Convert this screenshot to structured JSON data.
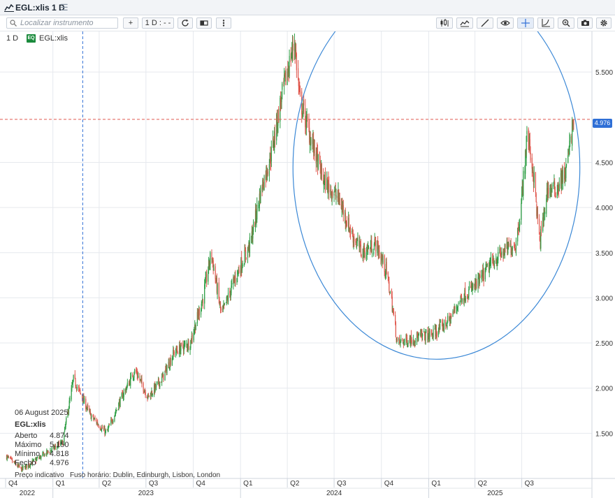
{
  "window": {
    "title": "EGL:xlis 1 D"
  },
  "toolbar": {
    "search_placeholder": "Localizar instrumento",
    "add_label": "+",
    "interval_label": "1 D : - -"
  },
  "legend": {
    "interval": "1 D",
    "badge": "EQ",
    "instrument": "EGL:xlis"
  },
  "last_price_label": "4.976",
  "info_panel": {
    "date": "06 August 2025",
    "instrument": "EGL:xlis",
    "rows": [
      {
        "label": "Aberto",
        "value": "4.874"
      },
      {
        "label": "Máximo",
        "value": "5.150"
      },
      {
        "label": "Mínimo",
        "value": "4.818"
      },
      {
        "label": "Fecho",
        "value": "4.976"
      }
    ]
  },
  "footer": {
    "note": "Preço indicativo",
    "timezone": "Fuso horário: Dublin, Edinburgh, Lisbon, London"
  },
  "colors": {
    "up": "#2e9e45",
    "down": "#e0594f",
    "accent": "#2f6fd6",
    "grid": "#e6e9ee",
    "circle": "#3b88d6"
  },
  "chart_data": {
    "type": "candlestick",
    "title": "",
    "ylim": [
      1.0,
      5.95
    ],
    "y_ticks": [
      "1.500",
      "2.000",
      "2.500",
      "3.000",
      "3.500",
      "4.000",
      "4.500",
      "5.500"
    ],
    "x_quarters": [
      "Q4",
      "Q1",
      "Q2",
      "Q3",
      "Q4",
      "Q1",
      "Q2",
      "Q3",
      "Q4",
      "Q1",
      "Q2",
      "Q3"
    ],
    "x_years": [
      "2022",
      "2023",
      "2024",
      "2025"
    ],
    "last_price": 4.976,
    "series": [
      {
        "name": "EGL:xlis",
        "approx_close_path": [
          [
            "2022-10-01",
            1.25
          ],
          [
            "2022-11-01",
            1.1
          ],
          [
            "2023-01-20",
            1.4
          ],
          [
            "2023-02-10",
            2.1
          ],
          [
            "2023-03-15",
            1.7
          ],
          [
            "2023-04-15",
            1.5
          ],
          [
            "2023-05-15",
            1.9
          ],
          [
            "2023-06-10",
            2.2
          ],
          [
            "2023-07-05",
            1.9
          ],
          [
            "2023-08-01",
            2.1
          ],
          [
            "2023-08-25",
            2.4
          ],
          [
            "2023-09-25",
            2.5
          ],
          [
            "2023-10-20",
            3.0
          ],
          [
            "2023-11-05",
            3.5
          ],
          [
            "2023-11-25",
            2.8
          ],
          [
            "2023-12-20",
            3.2
          ],
          [
            "2024-01-20",
            3.6
          ],
          [
            "2024-02-10",
            4.2
          ],
          [
            "2024-03-01",
            4.6
          ],
          [
            "2024-03-20",
            5.2
          ],
          [
            "2024-04-05",
            5.6
          ],
          [
            "2024-04-15",
            5.85
          ],
          [
            "2024-04-25",
            5.2
          ],
          [
            "2024-05-20",
            4.7
          ],
          [
            "2024-06-10",
            4.3
          ],
          [
            "2024-07-10",
            4.1
          ],
          [
            "2024-08-05",
            3.7
          ],
          [
            "2024-08-25",
            3.5
          ],
          [
            "2024-09-20",
            3.6
          ],
          [
            "2024-10-10",
            3.3
          ],
          [
            "2024-10-20",
            3.0
          ],
          [
            "2024-11-01",
            2.5
          ],
          [
            "2024-12-01",
            2.55
          ],
          [
            "2025-01-10",
            2.6
          ],
          [
            "2025-02-10",
            2.75
          ],
          [
            "2025-03-05",
            3.0
          ],
          [
            "2025-04-05",
            3.15
          ],
          [
            "2025-05-05",
            3.4
          ],
          [
            "2025-06-05",
            3.55
          ],
          [
            "2025-06-20",
            3.6
          ],
          [
            "2025-07-01",
            4.1
          ],
          [
            "2025-07-12",
            4.85
          ],
          [
            "2025-07-25",
            4.3
          ],
          [
            "2025-08-05",
            3.6
          ],
          [
            "2025-08-20",
            4.2
          ],
          [
            "2025-09-05",
            4.2
          ],
          [
            "2025-09-25",
            4.4
          ],
          [
            "2025-10-10",
            4.976
          ]
        ]
      }
    ],
    "annotations": [
      "dashed horizontal line at last price",
      "dashed vertical crosshair line",
      "hand-drawn ellipse around rounding bottom"
    ],
    "grid": true,
    "price_axis": "right"
  }
}
